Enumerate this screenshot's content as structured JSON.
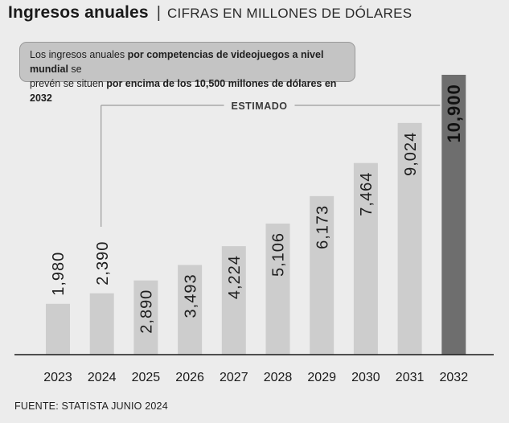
{
  "header": {
    "title": "Ingresos anuales",
    "separator": "|",
    "subtitle": "CIFRAS EN MILLONES DE DÓLARES"
  },
  "note": {
    "line1_a": "Los ingresos anuales ",
    "line1_b": "por competencias de videojuegos a nivel mundial",
    "line1_c": " se",
    "line2_a": "prevén se situen ",
    "line2_b": "por encima de los 10,500 millones de dólares en 2032"
  },
  "source": "FUENTE: STATISTA JUNIO 2024",
  "colors": {
    "bar_light": "#cdcdcd",
    "bar_dark": "#6e6e6e",
    "axis": "#1a1a1a",
    "bracket": "#9a9a9a"
  },
  "chart_data": {
    "type": "bar",
    "title": "Ingresos anuales",
    "subtitle": "CIFRAS EN MILLONES DE DÓLARES",
    "categories": [
      "2023",
      "2024",
      "2025",
      "2026",
      "2027",
      "2028",
      "2029",
      "2030",
      "2031",
      "2032"
    ],
    "values": [
      1980,
      2390,
      2890,
      3493,
      4224,
      5106,
      6173,
      7464,
      9024,
      10900
    ],
    "value_labels": [
      "1,980",
      "2,390",
      "2,890",
      "3,493",
      "4,224",
      "5,106",
      "6,173",
      "7,464",
      "9,024",
      "10,900"
    ],
    "ylim": [
      0,
      10900
    ],
    "grid": false,
    "legend": "none",
    "highlighted_category": "2032",
    "annotation": {
      "text": "ESTIMADO",
      "from_category": "2024",
      "to_category": "2032"
    }
  }
}
